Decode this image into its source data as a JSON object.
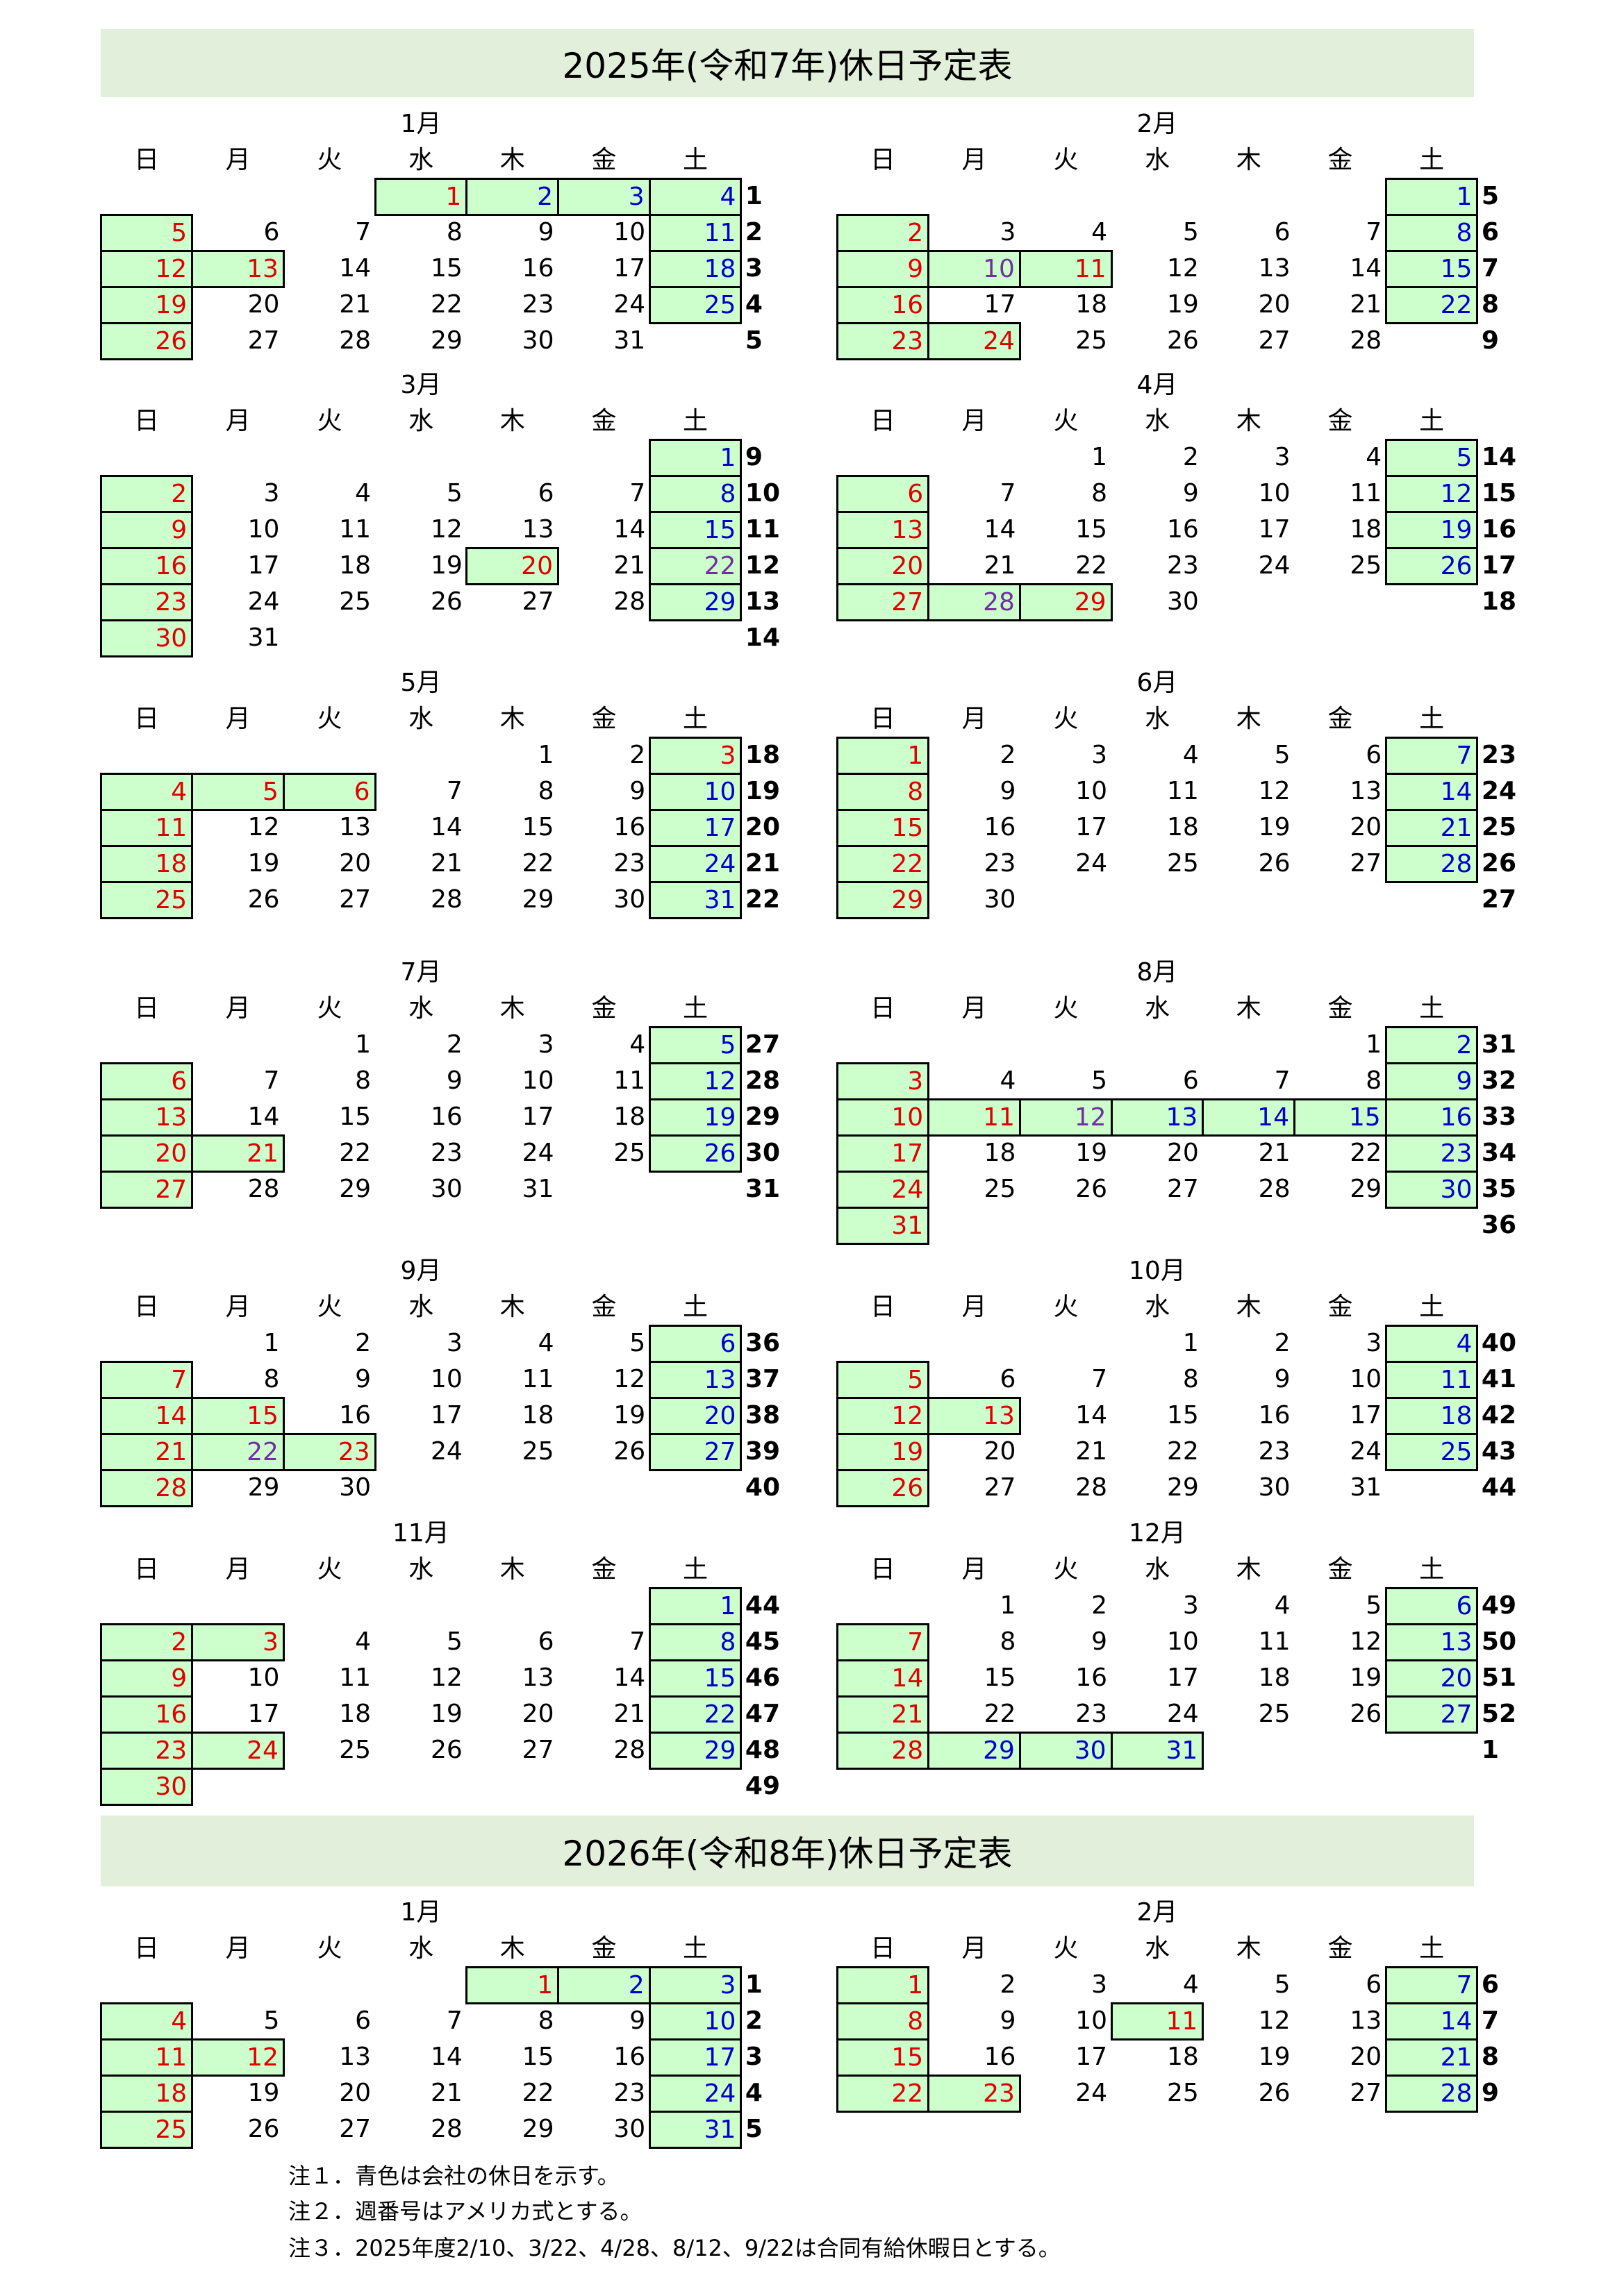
{
  "colors": {
    "holiday": "#e00000",
    "company_holiday": "#0000cc",
    "paid_leave": "#7030a0",
    "normal": "#000000",
    "highlight_fill": "#ccffcc",
    "title_band": "#e2efda"
  },
  "weekdays": [
    "日",
    "月",
    "火",
    "水",
    "木",
    "金",
    "土"
  ],
  "sections": [
    {
      "title": "2025年(令和7年)休日予定表",
      "months": [
        {
          "label": "1月",
          "first_weekday": 3,
          "days": 31,
          "weeks": [
            1,
            2,
            3,
            4,
            5
          ],
          "red": [
            1,
            5,
            12,
            13,
            19,
            26
          ],
          "blue": [
            2,
            3,
            4,
            11,
            18,
            25
          ],
          "purple": []
        },
        {
          "label": "2月",
          "first_weekday": 6,
          "days": 28,
          "weeks": [
            5,
            6,
            7,
            8,
            9
          ],
          "red": [
            2,
            9,
            11,
            16,
            23,
            24
          ],
          "blue": [
            1,
            8,
            15,
            22
          ],
          "purple": [
            10
          ]
        },
        {
          "label": "3月",
          "first_weekday": 6,
          "days": 31,
          "weeks": [
            9,
            10,
            11,
            12,
            13,
            14
          ],
          "red": [
            2,
            9,
            16,
            20,
            23,
            30
          ],
          "blue": [
            1,
            8,
            15,
            29
          ],
          "purple": [
            22
          ]
        },
        {
          "label": "4月",
          "first_weekday": 2,
          "days": 30,
          "weeks": [
            14,
            15,
            16,
            17,
            18
          ],
          "red": [
            6,
            13,
            20,
            27,
            29
          ],
          "blue": [
            5,
            12,
            19,
            26
          ],
          "purple": [
            28
          ]
        },
        {
          "label": "5月",
          "first_weekday": 4,
          "days": 31,
          "weeks": [
            18,
            19,
            20,
            21,
            22
          ],
          "red": [
            3,
            4,
            5,
            6,
            11,
            18,
            25
          ],
          "blue": [
            10,
            17,
            24,
            31
          ],
          "purple": []
        },
        {
          "label": "6月",
          "first_weekday": 0,
          "days": 30,
          "weeks": [
            23,
            24,
            25,
            26,
            27
          ],
          "red": [
            1,
            8,
            15,
            22,
            29
          ],
          "blue": [
            7,
            14,
            21,
            28
          ],
          "purple": []
        },
        {
          "label": "7月",
          "first_weekday": 2,
          "days": 31,
          "weeks": [
            27,
            28,
            29,
            30,
            31
          ],
          "red": [
            6,
            13,
            20,
            21,
            27
          ],
          "blue": [
            5,
            12,
            19,
            26
          ],
          "purple": []
        },
        {
          "label": "8月",
          "first_weekday": 5,
          "days": 31,
          "weeks": [
            31,
            32,
            33,
            34,
            35,
            36
          ],
          "red": [
            3,
            10,
            11,
            17,
            24,
            31
          ],
          "blue": [
            2,
            9,
            13,
            14,
            15,
            16,
            23,
            30
          ],
          "purple": [
            12
          ]
        },
        {
          "label": "9月",
          "first_weekday": 1,
          "days": 30,
          "weeks": [
            36,
            37,
            38,
            39,
            40
          ],
          "red": [
            7,
            14,
            15,
            21,
            23,
            28
          ],
          "blue": [
            6,
            13,
            20,
            27
          ],
          "purple": [
            22
          ]
        },
        {
          "label": "10月",
          "first_weekday": 3,
          "days": 31,
          "weeks": [
            40,
            41,
            42,
            43,
            44
          ],
          "red": [
            5,
            12,
            13,
            19,
            26
          ],
          "blue": [
            4,
            11,
            18,
            25
          ],
          "purple": []
        },
        {
          "label": "11月",
          "first_weekday": 6,
          "days": 30,
          "weeks": [
            44,
            45,
            46,
            47,
            48,
            49
          ],
          "red": [
            2,
            3,
            9,
            16,
            23,
            24,
            30
          ],
          "blue": [
            1,
            8,
            15,
            22,
            29
          ],
          "purple": []
        },
        {
          "label": "12月",
          "first_weekday": 1,
          "days": 31,
          "weeks": [
            49,
            50,
            51,
            52,
            1
          ],
          "red": [
            7,
            14,
            21,
            28
          ],
          "blue": [
            6,
            13,
            20,
            27,
            29,
            30,
            31
          ],
          "purple": []
        }
      ]
    },
    {
      "title": "2026年(令和8年)休日予定表",
      "months": [
        {
          "label": "1月",
          "first_weekday": 4,
          "days": 31,
          "weeks": [
            1,
            2,
            3,
            4,
            5
          ],
          "red": [
            1,
            4,
            11,
            12,
            18,
            25
          ],
          "blue": [
            2,
            3,
            10,
            17,
            24,
            31
          ],
          "purple": []
        },
        {
          "label": "2月",
          "first_weekday": 0,
          "days": 28,
          "weeks": [
            6,
            7,
            8,
            9
          ],
          "red": [
            1,
            8,
            11,
            15,
            22,
            23
          ],
          "blue": [
            7,
            14,
            21,
            28
          ],
          "purple": []
        }
      ]
    }
  ],
  "notes": [
    "注１．青色は会社の休日を示す。",
    "注２．週番号はアメリカ式とする。",
    "注３．2025年度2/10、3/22、4/28、8/12、9/22は合同有給休暇日とする。"
  ]
}
